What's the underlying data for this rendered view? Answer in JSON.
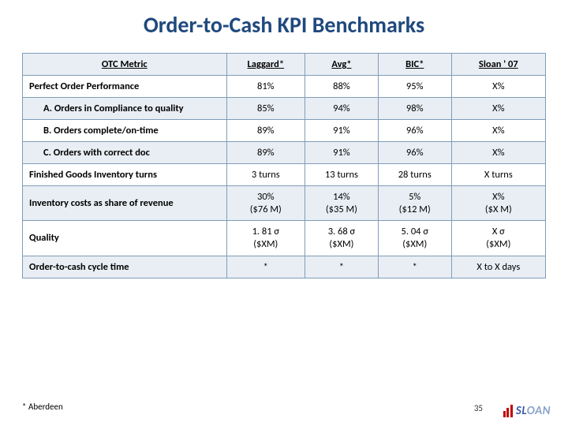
{
  "title": "Order-to-Cash KPI Benchmarks",
  "columns": {
    "metric": "OTC Metric",
    "c1": "Laggard*",
    "c2": "Avg*",
    "c3": "BIC*",
    "c4": "Sloan ' 07"
  },
  "rows": [
    {
      "shaded": false,
      "sub": false,
      "metric": "Perfect Order Performance",
      "v": [
        "81%",
        "88%",
        "95%",
        "X%"
      ]
    },
    {
      "shaded": true,
      "sub": true,
      "metric": "A. Orders in Compliance to quality",
      "v": [
        "85%",
        "94%",
        "98%",
        "X%"
      ]
    },
    {
      "shaded": false,
      "sub": true,
      "metric": "B. Orders complete/on-time",
      "v": [
        "89%",
        "91%",
        "96%",
        "X%"
      ]
    },
    {
      "shaded": true,
      "sub": true,
      "metric": "C. Orders with correct doc",
      "v": [
        "89%",
        "91%",
        "96%",
        "X%"
      ]
    },
    {
      "shaded": false,
      "sub": false,
      "metric": "Finished Goods Inventory turns",
      "v": [
        "3 turns",
        "13 turns",
        "28 turns",
        "X turns"
      ]
    },
    {
      "shaded": true,
      "sub": false,
      "metric": "Inventory costs as share of revenue",
      "v": [
        "30%\n($76 M)",
        "14%\n($35 M)",
        "5%\n($12 M)",
        "X%\n($X M)"
      ]
    },
    {
      "shaded": false,
      "sub": false,
      "metric": "Quality",
      "v": [
        "1. 81 σ\n($XM)",
        "3. 68 σ\n($XM)",
        "5. 04 σ\n($XM)",
        "X σ\n($XM)"
      ]
    },
    {
      "shaded": true,
      "sub": false,
      "metric": "Order-to-cash cycle time",
      "v": [
        "*",
        "*",
        "*",
        "X to X days"
      ]
    }
  ],
  "footnote": "* Aberdeen",
  "pagenum": "35",
  "logo": "SLOAN",
  "col_widths": [
    "39%",
    "15%",
    "14%",
    "14%",
    "18%"
  ],
  "colors": {
    "title": "#1f497d",
    "border": "#7f9db9",
    "shade": "#e9eef4",
    "logo_bars": "#c00000",
    "logo_text1": "#3b5ba5",
    "logo_text2": "#8aa4c8"
  }
}
